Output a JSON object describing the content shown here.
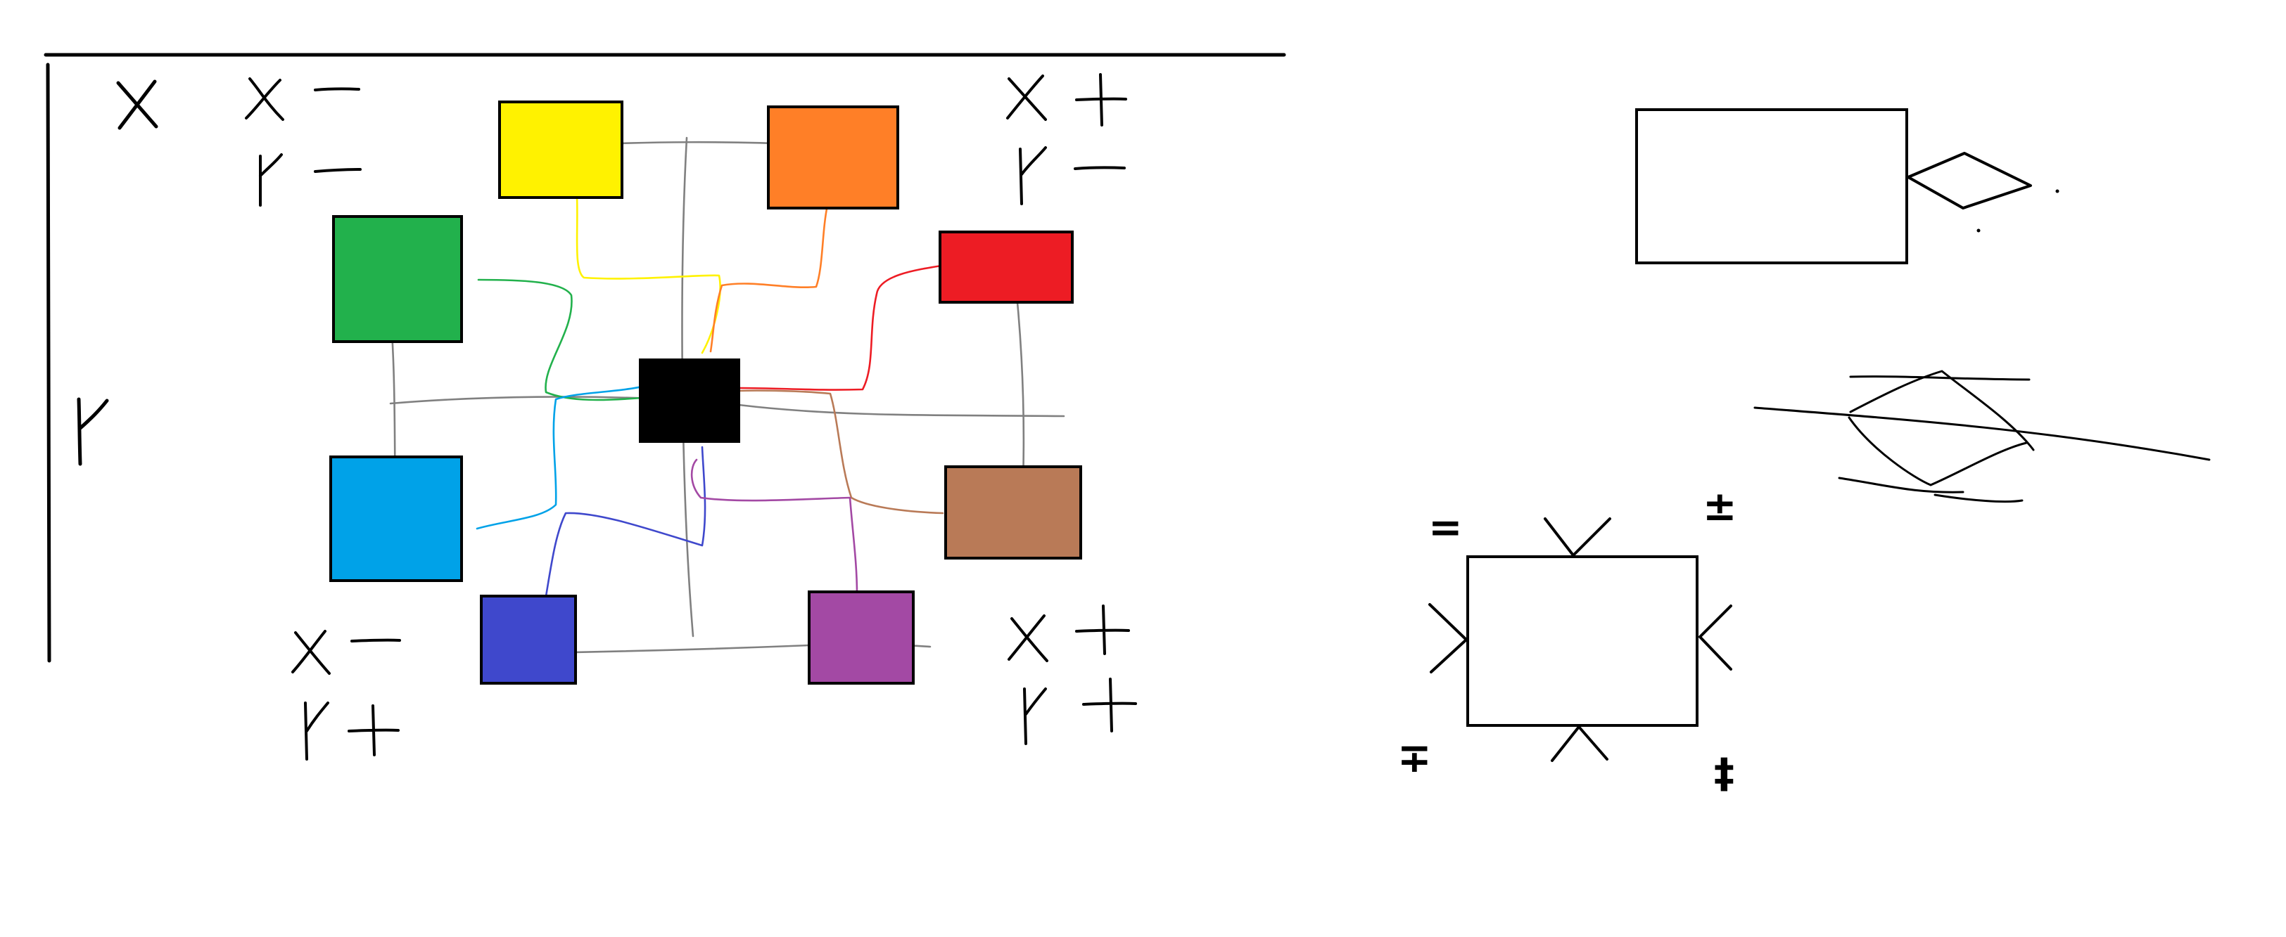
{
  "canvas": {
    "background": "#ffffff"
  },
  "axis_labels": {
    "x": "X",
    "y": "Y"
  },
  "quadrant_labels": {
    "top_left": {
      "x": "X −",
      "y": "Y −"
    },
    "top_right": {
      "x": "X +",
      "y": "Y −"
    },
    "bottom_left": {
      "x": "X −",
      "y": "Y +"
    },
    "bottom_right": {
      "x": "X +",
      "y": "Y +"
    }
  },
  "nodes": [
    {
      "id": "yellow",
      "color": "#fff200"
    },
    {
      "id": "orange",
      "color": "#ff7f27"
    },
    {
      "id": "green",
      "color": "#22b14c"
    },
    {
      "id": "red",
      "color": "#ed1c24"
    },
    {
      "id": "black",
      "color": "#000000"
    },
    {
      "id": "cyan",
      "color": "#00a2e8"
    },
    {
      "id": "brown",
      "color": "#b97a57"
    },
    {
      "id": "blue",
      "color": "#3f48cc"
    },
    {
      "id": "purple",
      "color": "#a349a4"
    }
  ],
  "connection_colors": {
    "grid": "#808080",
    "yellow": "#fff200",
    "orange": "#ff7f27",
    "green": "#22b14c",
    "red": "#ed1c24",
    "cyan": "#00a2e8",
    "brown": "#b97a57",
    "blue": "#3f48cc",
    "purple": "#a349a4"
  },
  "corner_symbols": {
    "top_left": "=",
    "top_right": "±",
    "bottom_left": "∓",
    "bottom_right": "‡"
  },
  "icons": [
    "rectangle-with-diamond-icon",
    "crossing-lines-icon",
    "rectangle-with-arrows-icon"
  ]
}
